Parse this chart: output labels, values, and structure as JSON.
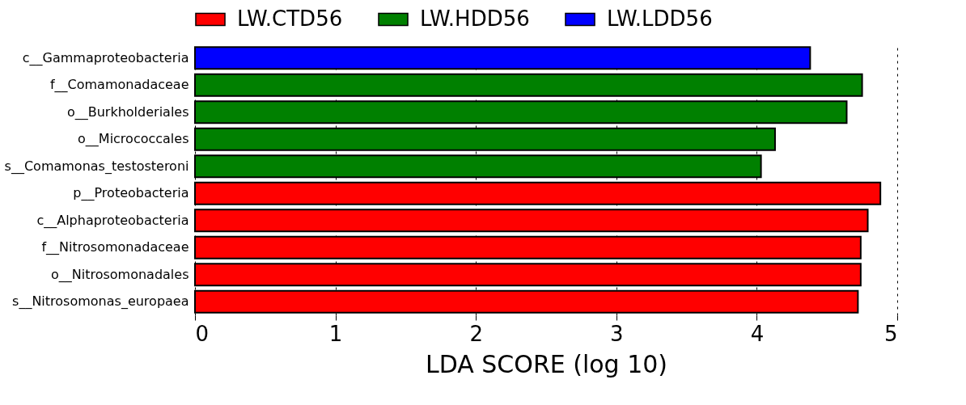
{
  "chart_data": {
    "type": "bar",
    "orientation": "horizontal",
    "xlabel": "LDA SCORE (log 10)",
    "categories": [
      "c__Gammaproteobacteria",
      "f__Comamonadaceae",
      "o__Burkholderiales",
      "o__Micrococcales",
      "s__Comamonas_testosteroni",
      "p__Proteobacteria",
      "c__Alphaproteobacteria",
      "f__Nitrosomonadaceae",
      "o__Nitrosomonadales",
      "s__Nitrosomonas_europaea"
    ],
    "series": [
      {
        "name": "LW.CTD56",
        "color": "#ff0000",
        "values": [
          null,
          null,
          null,
          null,
          null,
          4.88,
          4.79,
          4.74,
          4.74,
          4.72
        ]
      },
      {
        "name": "LW.HDD56",
        "color": "#008000",
        "values": [
          null,
          4.75,
          4.64,
          4.13,
          4.03,
          null,
          null,
          null,
          null,
          null
        ]
      },
      {
        "name": "LW.LDD56",
        "color": "#0000ff",
        "values": [
          4.38,
          null,
          null,
          null,
          null,
          null,
          null,
          null,
          null,
          null
        ]
      }
    ],
    "xlim": [
      0,
      5
    ],
    "xticks": [
      0,
      1,
      2,
      3,
      4,
      5
    ],
    "grid": "x",
    "legend": "top"
  }
}
